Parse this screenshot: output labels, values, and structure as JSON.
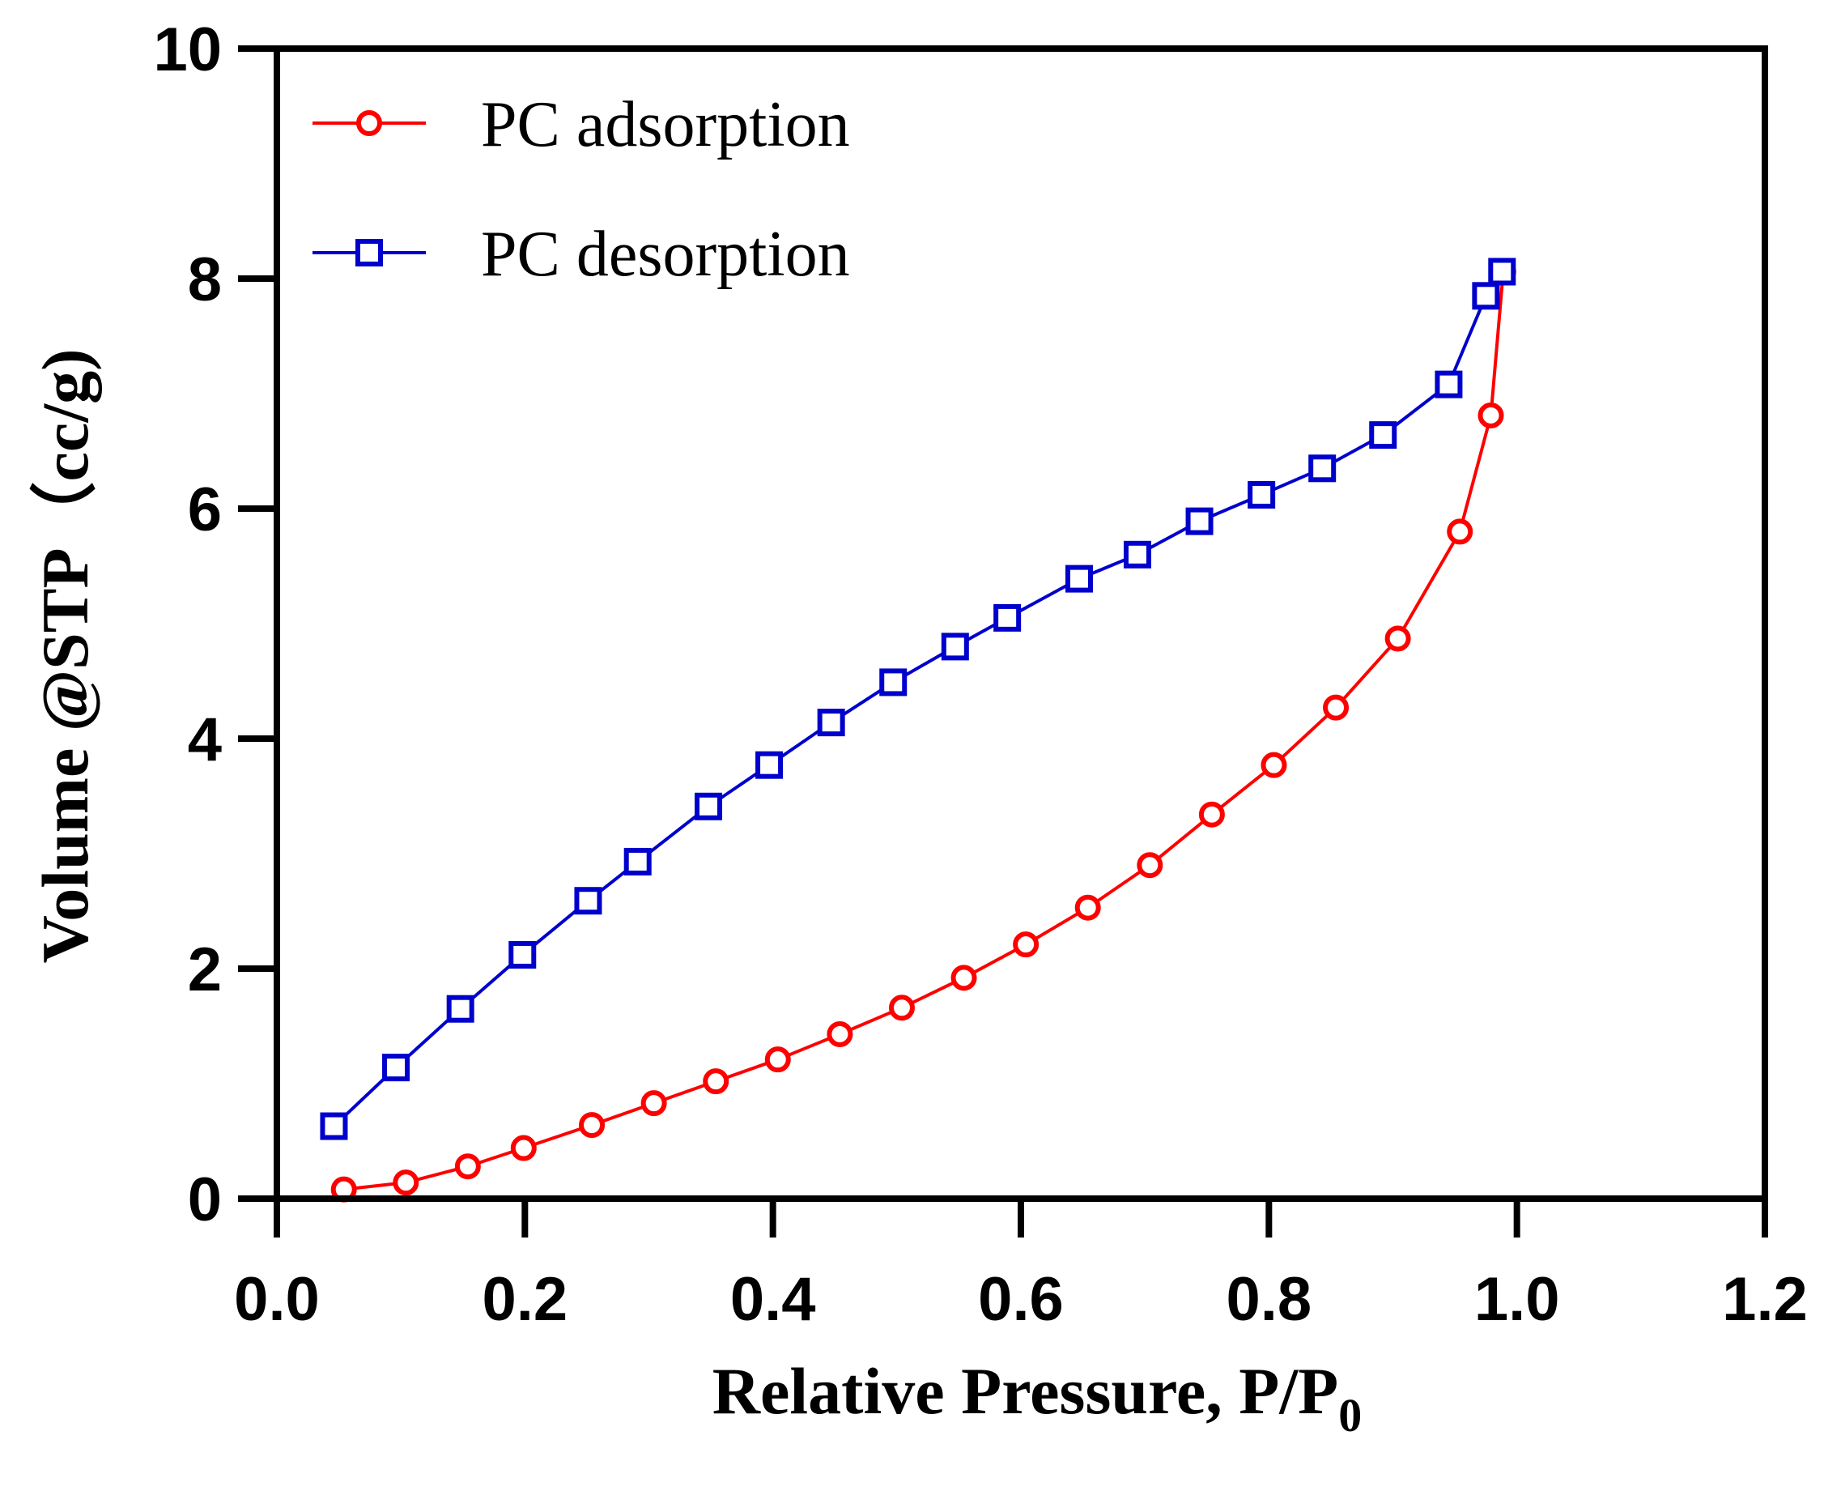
{
  "chart_data": {
    "type": "line",
    "title": "",
    "xlabel": "Relative Pressure, P/P",
    "xlabel_subscript": "0",
    "ylabel": "Volume @STP（cc/g)",
    "xlim": [
      0.0,
      1.2
    ],
    "ylim": [
      0,
      10
    ],
    "x_ticks": [
      0.0,
      0.2,
      0.4,
      0.6,
      0.8,
      1.0,
      1.2
    ],
    "x_tick_labels": [
      "0.0",
      "0.2",
      "0.4",
      "0.6",
      "0.8",
      "1.0",
      "1.2"
    ],
    "y_ticks": [
      0,
      2,
      4,
      6,
      8,
      10
    ],
    "y_tick_labels": [
      "0",
      "2",
      "4",
      "6",
      "8",
      "10"
    ],
    "grid": false,
    "legend_position": "top-left",
    "series": [
      {
        "name": "PC adsorption",
        "color": "#ff0000",
        "marker": "circle",
        "x": [
          0.054,
          0.104,
          0.154,
          0.199,
          0.254,
          0.304,
          0.354,
          0.404,
          0.454,
          0.504,
          0.554,
          0.604,
          0.654,
          0.704,
          0.754,
          0.804,
          0.854,
          0.904,
          0.954,
          0.979,
          0.989
        ],
        "y": [
          0.08,
          0.14,
          0.28,
          0.44,
          0.64,
          0.83,
          1.02,
          1.21,
          1.43,
          1.66,
          1.92,
          2.21,
          2.53,
          2.9,
          3.34,
          3.77,
          4.27,
          4.87,
          5.8,
          6.81,
          8.06
        ]
      },
      {
        "name": "PC desorption",
        "color": "#0000cc",
        "marker": "square",
        "x": [
          0.046,
          0.096,
          0.148,
          0.198,
          0.251,
          0.291,
          0.348,
          0.397,
          0.447,
          0.497,
          0.547,
          0.589,
          0.647,
          0.694,
          0.744,
          0.794,
          0.843,
          0.892,
          0.945,
          0.975,
          0.988
        ],
        "y": [
          0.63,
          1.14,
          1.65,
          2.12,
          2.59,
          2.93,
          3.41,
          3.77,
          4.14,
          4.49,
          4.8,
          5.05,
          5.39,
          5.6,
          5.89,
          6.12,
          6.35,
          6.64,
          7.08,
          7.85,
          8.06
        ]
      }
    ]
  }
}
